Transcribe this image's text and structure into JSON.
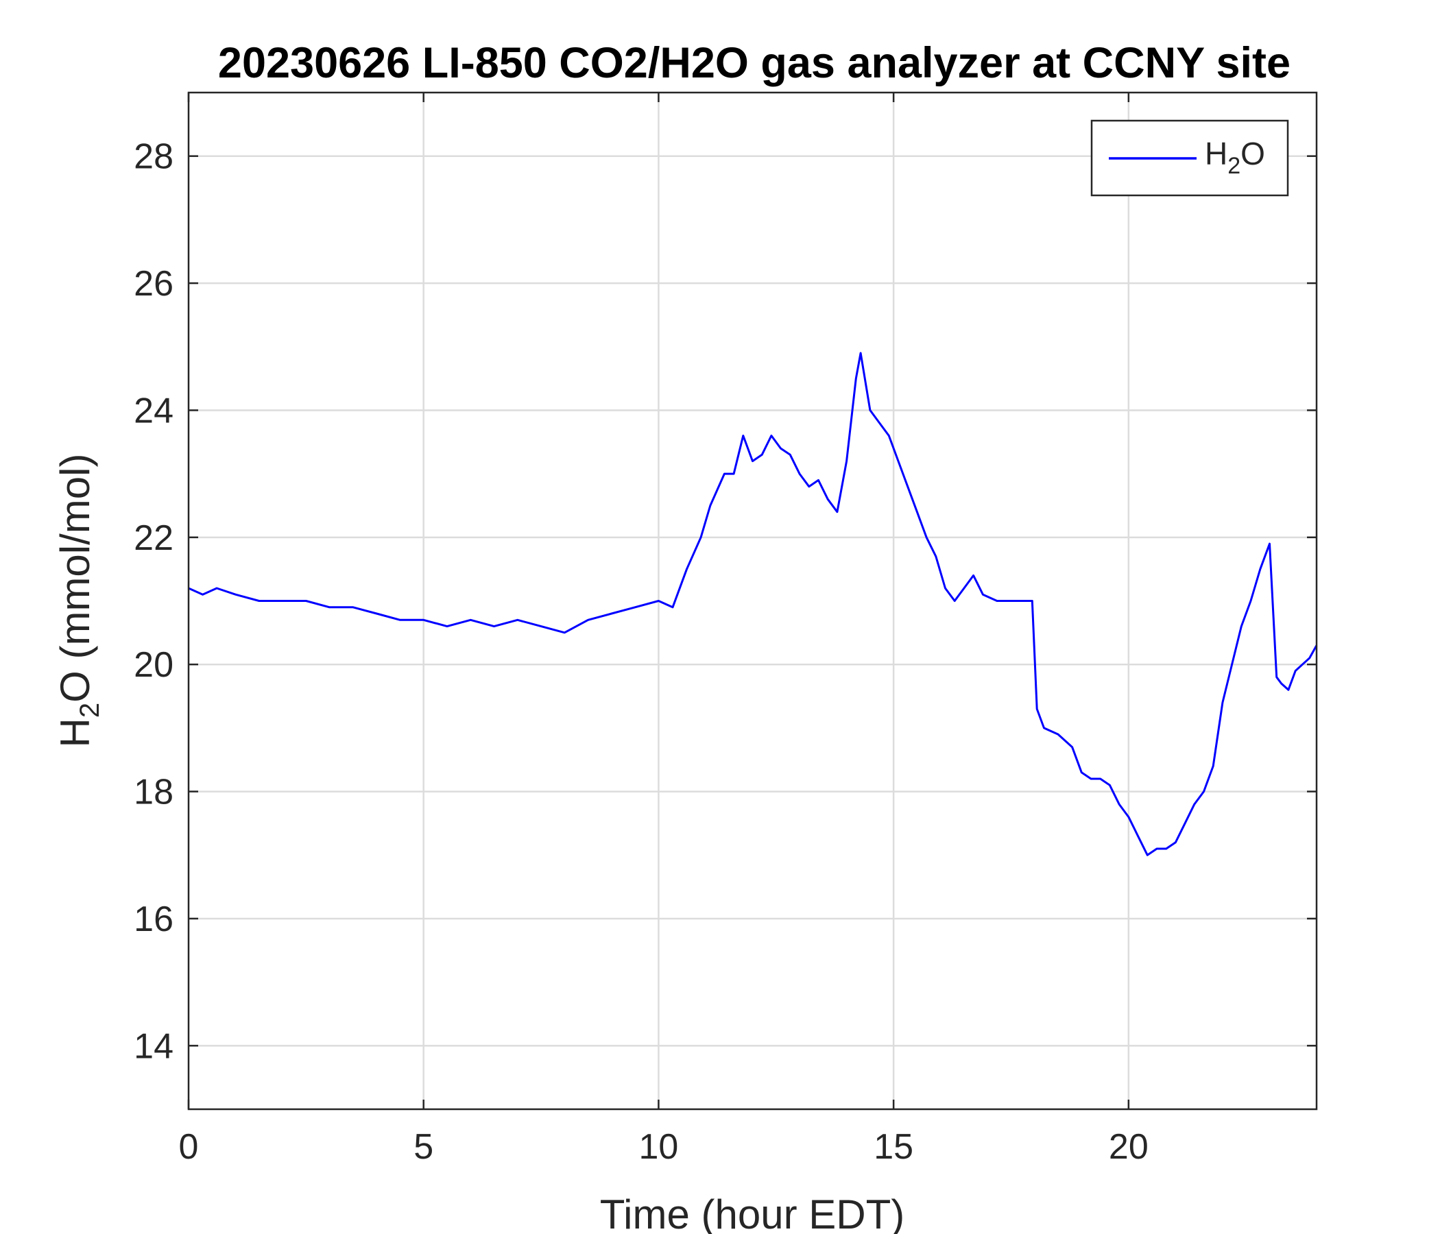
{
  "chart_data": {
    "type": "line",
    "title": "20230626 LI-850 CO2/H2O gas analyzer at CCNY site",
    "xlabel": "Time (hour EDT)",
    "ylabel": {
      "main": "H",
      "sub": "2",
      "rest": "O (mmol/mol)"
    },
    "xlim": [
      0,
      24
    ],
    "ylim": [
      13,
      29
    ],
    "xticks": [
      0,
      5,
      10,
      15,
      20
    ],
    "yticks": [
      14,
      16,
      18,
      20,
      22,
      24,
      26,
      28
    ],
    "grid": true,
    "legend_position": "top-right",
    "series": [
      {
        "name": {
          "main": "H",
          "sub": "2",
          "rest": "O"
        },
        "color": "#0000ff",
        "x": [
          0,
          0.3,
          0.6,
          1.0,
          1.5,
          2.0,
          2.5,
          3.0,
          3.5,
          4.0,
          4.5,
          5.0,
          5.5,
          6.0,
          6.5,
          7.0,
          7.5,
          8.0,
          8.5,
          9.0,
          9.5,
          10.0,
          10.3,
          10.6,
          10.9,
          11.1,
          11.4,
          11.6,
          11.8,
          12.0,
          12.2,
          12.4,
          12.6,
          12.8,
          13.0,
          13.2,
          13.4,
          13.6,
          13.8,
          14.0,
          14.2,
          14.3,
          14.5,
          14.7,
          14.9,
          15.1,
          15.3,
          15.5,
          15.7,
          15.9,
          16.1,
          16.3,
          16.5,
          16.7,
          16.9,
          17.2,
          17.5,
          17.8,
          17.95,
          18.05,
          18.2,
          18.5,
          18.8,
          19.0,
          19.2,
          19.4,
          19.6,
          19.8,
          20.0,
          20.2,
          20.4,
          20.6,
          20.8,
          21.0,
          21.2,
          21.4,
          21.6,
          21.8,
          22.0,
          22.2,
          22.4,
          22.6,
          22.8,
          23.0,
          23.15,
          23.25,
          23.4,
          23.55,
          23.7,
          23.85,
          24.0
        ],
        "y": [
          21.2,
          21.1,
          21.2,
          21.1,
          21.0,
          21.0,
          21.0,
          20.9,
          20.9,
          20.8,
          20.7,
          20.7,
          20.6,
          20.7,
          20.6,
          20.7,
          20.6,
          20.5,
          20.7,
          20.8,
          20.9,
          21.0,
          20.9,
          21.5,
          22.0,
          22.5,
          23.0,
          23.0,
          23.6,
          23.2,
          23.3,
          23.6,
          23.4,
          23.3,
          23.0,
          22.8,
          22.9,
          22.6,
          22.4,
          23.2,
          24.5,
          24.9,
          24.0,
          23.8,
          23.6,
          23.2,
          22.8,
          22.4,
          22.0,
          21.7,
          21.2,
          21.0,
          21.2,
          21.4,
          21.1,
          21.0,
          21.0,
          21.0,
          21.0,
          19.3,
          19.0,
          18.9,
          18.7,
          18.3,
          18.2,
          18.2,
          18.1,
          17.8,
          17.6,
          17.3,
          17.0,
          17.1,
          17.1,
          17.2,
          17.5,
          17.8,
          18.0,
          18.4,
          19.4,
          20.0,
          20.6,
          21.0,
          21.5,
          21.9,
          19.8,
          19.7,
          19.6,
          19.9,
          20.0,
          20.1,
          20.3
        ]
      }
    ]
  }
}
